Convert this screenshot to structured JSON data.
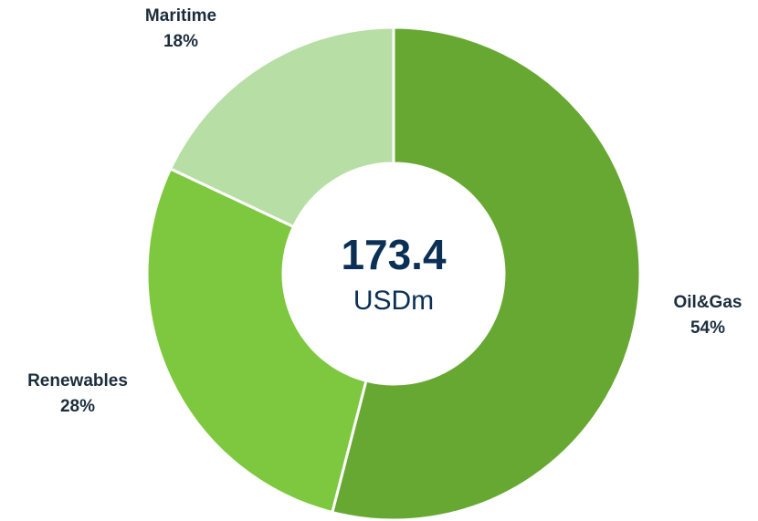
{
  "chart_data": {
    "type": "donut",
    "categories": [
      "Oil&Gas",
      "Renewables",
      "Maritime"
    ],
    "values": [
      54,
      28,
      18
    ],
    "value_labels": [
      "54%",
      "28%",
      "18%"
    ],
    "colors": [
      "#67a832",
      "#7dc83e",
      "#b7dea5"
    ],
    "center_value": 173.4,
    "center_unit": "USDm"
  }
}
